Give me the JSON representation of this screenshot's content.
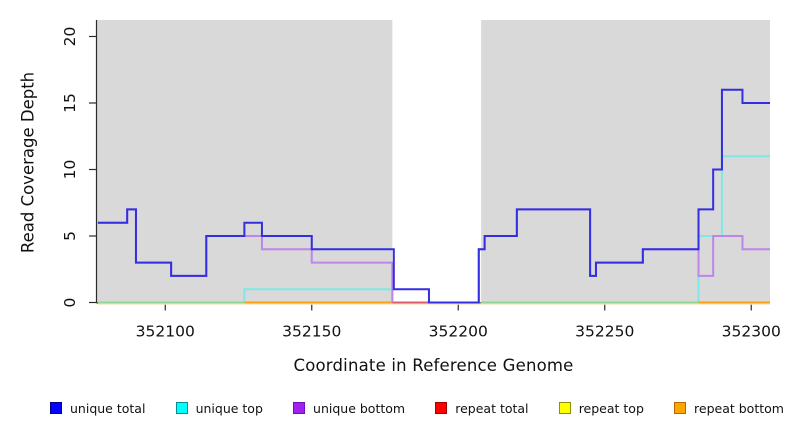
{
  "chart_data": {
    "type": "line",
    "style": "step-coverage-plot",
    "title": "",
    "xlabel": "Coordinate in Reference Genome",
    "ylabel": "Read Coverage Depth",
    "x_range": [
      352076.7,
      352306.4
    ],
    "y_range": [
      0,
      21.24
    ],
    "x_ticks": [
      352100,
      352150,
      352200,
      352250,
      352300
    ],
    "y_ticks": [
      0,
      5,
      10,
      15,
      20
    ],
    "grid": "off",
    "plot_bg": "#d9d9d9",
    "axis_color": "#2b2b2b",
    "no_coverage_gap": {
      "from": 352177.5,
      "to": 352207.8,
      "color": "#ffffff"
    },
    "series": [
      {
        "name": "unique total",
        "legend_color": "#0000ff",
        "line_color": "#332ee0",
        "runs": [
          {
            "points": [
              [
                352077,
                6
              ],
              [
                352087,
                7
              ],
              [
                352090,
                3
              ],
              [
                352102,
                2
              ],
              [
                352114,
                5
              ],
              [
                352127,
                6
              ],
              [
                352133,
                5
              ],
              [
                352150,
                4
              ],
              [
                352178,
                1
              ],
              [
                352190,
                0
              ],
              [
                352207,
                4
              ],
              [
                352209,
                5
              ],
              [
                352220,
                7
              ],
              [
                352245,
                2
              ],
              [
                352247,
                3
              ],
              [
                352263,
                4
              ],
              [
                352282,
                7
              ],
              [
                352287,
                10
              ],
              [
                352290,
                16
              ],
              [
                352297,
                15
              ]
            ],
            "end": 352306.4
          }
        ]
      },
      {
        "name": "unique top",
        "legend_color": "#00ffff",
        "line_color": "#7de8e4",
        "runs": [
          {
            "points": [
              [
                352077,
                0
              ],
              [
                352127,
                1
              ]
            ],
            "end": 352177.5,
            "end_at_zero": true
          },
          {
            "points": [
              [
                352207.8,
                0
              ],
              [
                352282,
                5
              ],
              [
                352290,
                11
              ]
            ],
            "end": 352306.4
          }
        ]
      },
      {
        "name": "unique bottom",
        "legend_color": "#a020f0",
        "line_color": "#be85ea",
        "runs": [
          {
            "points": [
              [
                352077,
                6
              ],
              [
                352087,
                7
              ],
              [
                352090,
                3
              ],
              [
                352102,
                2
              ],
              [
                352114,
                5
              ],
              [
                352133,
                4
              ],
              [
                352150,
                3
              ]
            ],
            "end": 352177.5,
            "end_at_zero": true
          },
          {
            "points": [
              [
                352207,
                4
              ],
              [
                352209,
                5
              ],
              [
                352220,
                7
              ],
              [
                352245,
                2
              ],
              [
                352247,
                3
              ],
              [
                352263,
                4
              ],
              [
                352282,
                2
              ],
              [
                352287,
                5
              ],
              [
                352297,
                4
              ]
            ],
            "end": 352306.4,
            "start_at_zero": true
          }
        ]
      },
      {
        "name": "repeat total",
        "legend_color": "#ff0000",
        "line_color": "#dc5c74",
        "runs": [
          {
            "points": [
              [
                352077,
                0
              ]
            ],
            "end": 352306.4
          }
        ]
      },
      {
        "name": "repeat top",
        "legend_color": "#ffff00",
        "line_color": "#efe9c0",
        "runs": [
          {
            "points": [
              [
                352077,
                0
              ]
            ],
            "end": 352306.4
          }
        ]
      },
      {
        "name": "repeat bottom",
        "legend_color": "#ffa500",
        "line_color": "#ffa013",
        "runs": [
          {
            "points": [
              [
                352077,
                0
              ]
            ],
            "end": 352306.4
          }
        ]
      }
    ],
    "baseline_visual_segments": [
      {
        "color": "#efe9c0",
        "from": 352077,
        "to": 352306.4,
        "dy": 1.5,
        "w": 1.5
      },
      {
        "color": "#dc5c74",
        "from": 352177.5,
        "to": 352190,
        "dy": 0,
        "w": 2
      },
      {
        "color": "#ffa013",
        "from": 352127,
        "to": 352177.5,
        "dy": 0,
        "w": 2
      },
      {
        "color": "#ffa013",
        "from": 352282,
        "to": 352306.4,
        "dy": 0,
        "w": 2
      },
      {
        "color": "#90d793",
        "from": 352077,
        "to": 352127,
        "dy": 0,
        "w": 2
      },
      {
        "color": "#90d793",
        "from": 352207.8,
        "to": 352282,
        "dy": 0,
        "w": 2
      }
    ],
    "draw_layers": [
      "seg:0",
      "series:unique top",
      "seg:1",
      "seg:2",
      "seg:3",
      "seg:4",
      "seg:5",
      "series:unique bottom",
      "series:unique total"
    ]
  },
  "legend": {
    "items": [
      {
        "label": "unique total",
        "fill": "#0000ff",
        "border": "#000090"
      },
      {
        "label": "unique top",
        "fill": "#00ffff",
        "border": "#009090"
      },
      {
        "label": "unique bottom",
        "fill": "#a020f0",
        "border": "#6c12b8"
      },
      {
        "label": "repeat total",
        "fill": "#ff0000",
        "border": "#a30000"
      },
      {
        "label": "repeat top",
        "fill": "#ffff00",
        "border": "#8f8f00"
      },
      {
        "label": "repeat bottom",
        "fill": "#ffa500",
        "border": "#b06e00"
      }
    ]
  }
}
